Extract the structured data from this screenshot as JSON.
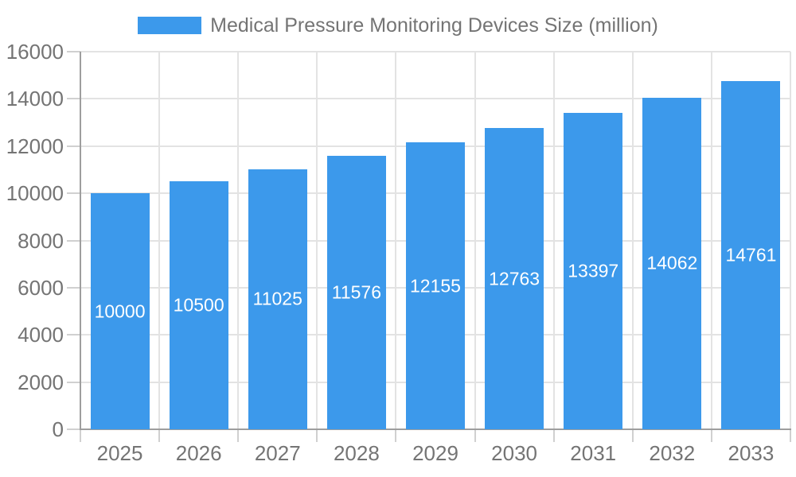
{
  "chart_data": {
    "type": "bar",
    "title": "Medical Pressure Monitoring Devices Size (million)",
    "categories": [
      "2025",
      "2026",
      "2027",
      "2028",
      "2029",
      "2030",
      "2031",
      "2032",
      "2033"
    ],
    "series": [
      {
        "name": "Medical Pressure Monitoring Devices Size (million)",
        "color": "#3C99EB",
        "values": [
          10000,
          10500,
          11025,
          11576,
          12155,
          12763,
          13397,
          14062,
          14761
        ]
      }
    ],
    "xlabel": "",
    "ylabel": "",
    "ylim": [
      0,
      16000
    ],
    "yticks": [
      0,
      2000,
      4000,
      6000,
      8000,
      10000,
      12000,
      14000,
      16000
    ],
    "grid": true,
    "legend_position": "top-center",
    "value_label_position": "inside-center",
    "value_label_color": "#ffffff",
    "colors": {
      "bar": "#3C99EB",
      "gridline": "#e3e3e3",
      "tick": "#d0d0d0",
      "axis": "#9e9e9e",
      "text": "#747474",
      "background": "#ffffff"
    }
  }
}
